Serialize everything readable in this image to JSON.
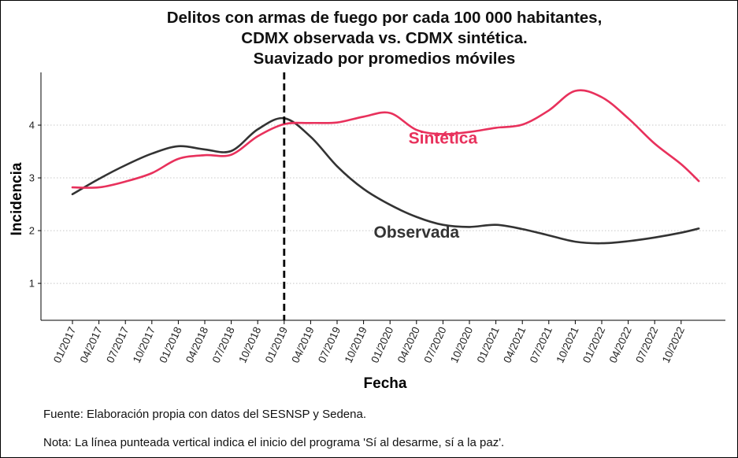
{
  "chart_data": {
    "type": "line",
    "title": [
      "Delitos con armas de fuego por cada 100 000 habitantes,",
      "CDMX observada vs. CDMX sintética.",
      "Suavizado por promedios móviles"
    ],
    "xlabel": "Fecha",
    "ylabel": "Incidencia",
    "ylim": [
      0.3,
      5.0
    ],
    "yticks": [
      1,
      2,
      3,
      4
    ],
    "grid": "horizontal-dotted",
    "x_tick_labels": [
      "01/2017",
      "04/2017",
      "07/2017",
      "10/2017",
      "01/2018",
      "04/2018",
      "07/2018",
      "10/2018",
      "01/2019",
      "04/2019",
      "07/2019",
      "10/2019",
      "01/2020",
      "04/2020",
      "07/2020",
      "10/2020",
      "01/2021",
      "04/2021",
      "07/2021",
      "10/2021",
      "01/2022",
      "04/2022",
      "07/2022",
      "10/2022"
    ],
    "vline": {
      "x": "01/2019",
      "style": "dashed"
    },
    "series": [
      {
        "name": "Observada",
        "color": "#333333",
        "label_at": [
          "04/2020",
          1.87
        ],
        "points": [
          [
            "01/2017",
            2.69
          ],
          [
            "04/2017",
            2.98
          ],
          [
            "07/2017",
            3.24
          ],
          [
            "10/2017",
            3.46
          ],
          [
            "01/2018",
            3.6
          ],
          [
            "04/2018",
            3.54
          ],
          [
            "07/2018",
            3.51
          ],
          [
            "10/2018",
            3.92
          ],
          [
            "01/2019",
            4.13
          ],
          [
            "04/2019",
            3.78
          ],
          [
            "07/2019",
            3.22
          ],
          [
            "10/2019",
            2.79
          ],
          [
            "01/2020",
            2.49
          ],
          [
            "04/2020",
            2.26
          ],
          [
            "07/2020",
            2.11
          ],
          [
            "10/2020",
            2.07
          ],
          [
            "01/2021",
            2.11
          ],
          [
            "04/2021",
            2.03
          ],
          [
            "07/2021",
            1.91
          ],
          [
            "10/2021",
            1.79
          ],
          [
            "01/2022",
            1.76
          ],
          [
            "04/2022",
            1.8
          ],
          [
            "07/2022",
            1.87
          ],
          [
            "10/2022",
            1.96
          ],
          [
            "12/2022",
            2.04
          ]
        ]
      },
      {
        "name": "Sintética",
        "color": "#E8315C",
        "label_at": [
          "07/2020",
          3.65
        ],
        "points": [
          [
            "01/2017",
            2.82
          ],
          [
            "04/2017",
            2.82
          ],
          [
            "07/2017",
            2.93
          ],
          [
            "10/2017",
            3.09
          ],
          [
            "01/2018",
            3.36
          ],
          [
            "04/2018",
            3.43
          ],
          [
            "07/2018",
            3.44
          ],
          [
            "10/2018",
            3.79
          ],
          [
            "01/2019",
            4.02
          ],
          [
            "04/2019",
            4.04
          ],
          [
            "07/2019",
            4.05
          ],
          [
            "10/2019",
            4.16
          ],
          [
            "01/2020",
            4.23
          ],
          [
            "04/2020",
            3.91
          ],
          [
            "07/2020",
            3.83
          ],
          [
            "10/2020",
            3.87
          ],
          [
            "01/2021",
            3.95
          ],
          [
            "04/2021",
            4.01
          ],
          [
            "07/2021",
            4.28
          ],
          [
            "10/2021",
            4.65
          ],
          [
            "01/2022",
            4.53
          ],
          [
            "04/2022",
            4.13
          ],
          [
            "07/2022",
            3.65
          ],
          [
            "10/2022",
            3.26
          ],
          [
            "12/2022",
            2.94
          ]
        ]
      }
    ]
  },
  "footnotes": {
    "source": "Fuente: Elaboración propia con datos del SESNSP y Sedena.",
    "note": "Nota: La línea punteada vertical indica el inicio del programa 'Sí al desarme, sí a la paz'."
  }
}
